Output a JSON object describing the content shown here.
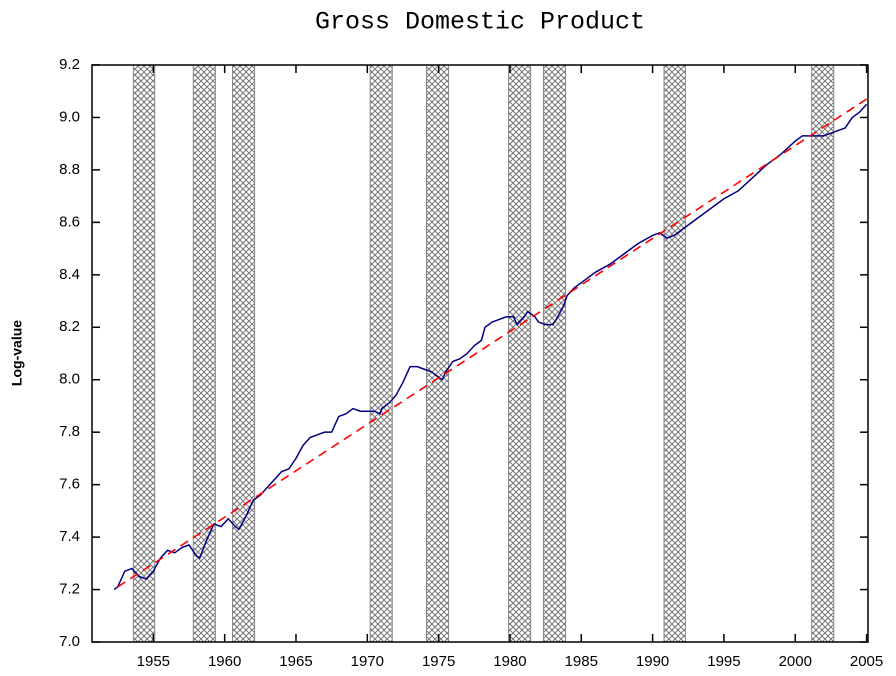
{
  "chart_data": {
    "type": "line",
    "title": "Gross Domestic Product",
    "y_label": "Log-value",
    "xlim": [
      1950.7,
      2005.1
    ],
    "xticks": [
      1955,
      1960,
      1965,
      1970,
      1975,
      1980,
      1985,
      1990,
      1995,
      2000,
      2005
    ],
    "ylim": [
      7.0,
      9.2
    ],
    "yticks": [
      {
        "value": 7.0,
        "label": "7.0"
      },
      7.2,
      7.4,
      7.6,
      7.8,
      {
        "value": 8.0,
        "label": "8.0"
      },
      8.2,
      8.4,
      8.6,
      8.8,
      {
        "value": 9.0,
        "label": "9.0"
      },
      9.2
    ],
    "shaded_periods": [
      [
        1953.6,
        1955.1
      ],
      [
        1957.8,
        1959.35
      ],
      [
        1960.55,
        1962.1
      ],
      [
        1970.2,
        1971.75
      ],
      [
        1974.15,
        1975.7
      ],
      [
        1979.9,
        1981.45
      ],
      [
        1982.35,
        1983.9
      ],
      [
        1990.8,
        1992.3
      ],
      [
        2001.15,
        2002.7
      ]
    ],
    "shade_color": "#888888",
    "series": [
      {
        "color": "#000080",
        "style": "solid",
        "x": [
          1952.25,
          1952.5,
          1953.0,
          1953.5,
          1954.0,
          1954.5,
          1955.0,
          1955.5,
          1956.0,
          1956.5,
          1957.0,
          1957.5,
          1958.0,
          1958.25,
          1958.75,
          1959.25,
          1959.75,
          1960.25,
          1960.75,
          1961.0,
          1961.5,
          1962.0,
          1962.5,
          1963.0,
          1963.5,
          1964.0,
          1964.5,
          1965.0,
          1965.5,
          1966.0,
          1966.5,
          1967.0,
          1967.5,
          1968.0,
          1968.5,
          1969.0,
          1969.5,
          1970.0,
          1970.5,
          1970.9,
          1971.0,
          1971.5,
          1972.0,
          1972.5,
          1973.0,
          1973.5,
          1974.0,
          1974.5,
          1975.0,
          1975.25,
          1975.5,
          1976.0,
          1976.5,
          1977.0,
          1977.5,
          1978.0,
          1978.25,
          1978.75,
          1979.25,
          1979.75,
          1980.25,
          1980.5,
          1981.0,
          1981.25,
          1981.75,
          1982.0,
          1982.5,
          1983.0,
          1983.25,
          1983.75,
          1984.0,
          1984.5,
          1985.0,
          1986.0,
          1987.0,
          1988.0,
          1989.0,
          1990.0,
          1990.5,
          1991.0,
          1991.5,
          1992.0,
          1993.0,
          1994.0,
          1995.0,
          1996.0,
          1997.0,
          1998.0,
          1999.0,
          2000.0,
          2000.5,
          2001.0,
          2001.5,
          2002.0,
          2002.5,
          2003.0,
          2003.5,
          2004.0,
          2004.5,
          2005.0
        ],
        "values": [
          7.2,
          7.21,
          7.27,
          7.28,
          7.25,
          7.24,
          7.27,
          7.32,
          7.35,
          7.34,
          7.36,
          7.37,
          7.33,
          7.32,
          7.39,
          7.45,
          7.44,
          7.47,
          7.44,
          7.43,
          7.48,
          7.54,
          7.56,
          7.59,
          7.62,
          7.65,
          7.66,
          7.7,
          7.75,
          7.78,
          7.79,
          7.8,
          7.8,
          7.86,
          7.87,
          7.89,
          7.88,
          7.88,
          7.88,
          7.87,
          7.89,
          7.91,
          7.94,
          7.99,
          8.05,
          8.05,
          8.04,
          8.03,
          8.01,
          8.0,
          8.03,
          8.07,
          8.08,
          8.1,
          8.13,
          8.15,
          8.2,
          8.22,
          8.23,
          8.24,
          8.24,
          8.21,
          8.24,
          8.26,
          8.24,
          8.22,
          8.21,
          8.21,
          8.23,
          8.28,
          8.32,
          8.35,
          8.37,
          8.41,
          8.44,
          8.48,
          8.52,
          8.55,
          8.56,
          8.54,
          8.55,
          8.57,
          8.61,
          8.65,
          8.69,
          8.72,
          8.77,
          8.82,
          8.86,
          8.91,
          8.93,
          8.93,
          8.93,
          8.93,
          8.94,
          8.95,
          8.96,
          9.0,
          9.02,
          9.05
        ]
      },
      {
        "color": "#ff0000",
        "style": "dashed",
        "x": [
          1952.5,
          2005.0
        ],
        "values": [
          7.21,
          9.07
        ]
      }
    ]
  }
}
